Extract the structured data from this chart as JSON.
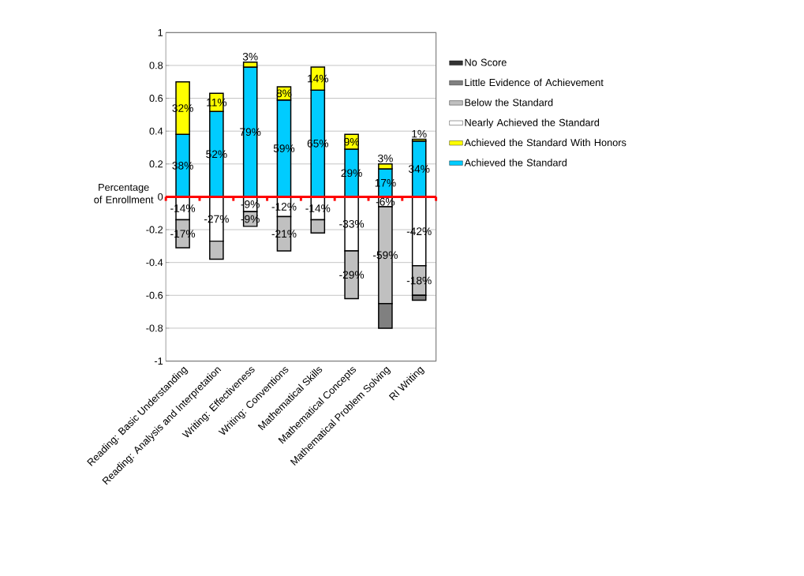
{
  "chart_data": {
    "type": "bar",
    "stacked": true,
    "ylabel": "Percentage of Enrollment",
    "categories": [
      "Reading: Basic Understanding",
      "Reading: Analysis and Interpretation",
      "Writing: Effectiveness",
      "Writing: Conventions",
      "Mathematical Skills",
      "Mathematical Concepts",
      "Mathematical Problem Solving",
      "RI Writing"
    ],
    "series": [
      {
        "name": "Achieved the Standard",
        "color": "#00ccff",
        "values": [
          0.38,
          0.52,
          0.79,
          0.59,
          0.65,
          0.29,
          0.17,
          0.34
        ],
        "value_labels": [
          "38%",
          "52%",
          "79%",
          "59%",
          "65%",
          "29%",
          "17%",
          "34%"
        ]
      },
      {
        "name": "Achieved the Standard With Honors",
        "color": "#ffff00",
        "values": [
          0.32,
          0.11,
          0.03,
          0.08,
          0.14,
          0.09,
          0.03,
          0.01
        ],
        "value_labels": [
          "32%",
          "11%",
          "3%",
          "8%",
          "14%",
          "9%",
          "3%",
          "1%"
        ]
      },
      {
        "name": "Nearly Achieved the Standard",
        "color": "#ffffff",
        "values": [
          -0.14,
          -0.27,
          -0.09,
          -0.12,
          -0.14,
          -0.33,
          -0.06,
          -0.42
        ],
        "value_labels": [
          "-14%",
          "-27%",
          "-9%",
          "-12%",
          "-14%",
          "-33%",
          "-6%",
          "-42%"
        ]
      },
      {
        "name": "Below the Standard",
        "color": "#c0c0c0",
        "values": [
          -0.17,
          -0.11,
          -0.09,
          -0.21,
          -0.08,
          -0.29,
          -0.59,
          -0.18
        ],
        "value_labels": [
          "-17%",
          null,
          "-9%",
          "-21%",
          null,
          "-29%",
          "-59%",
          "-18%"
        ]
      },
      {
        "name": "Little Evidence of Achievement",
        "color": "#808080",
        "values": [
          null,
          null,
          null,
          null,
          null,
          null,
          -0.15,
          -0.03
        ]
      },
      {
        "name": "No Score",
        "color": "#333333",
        "values": [
          null,
          null,
          null,
          null,
          null,
          null,
          null,
          null
        ]
      }
    ],
    "ylim": [
      -1,
      1
    ],
    "yticks": [
      -1,
      -0.8,
      -0.6,
      -0.4,
      -0.2,
      0,
      0.2,
      0.4,
      0.6,
      0.8,
      1
    ],
    "grid": "y",
    "legend": "right",
    "ref_lines": [
      {
        "axis": "y",
        "value": 0,
        "color": "#ff0000"
      }
    ]
  }
}
